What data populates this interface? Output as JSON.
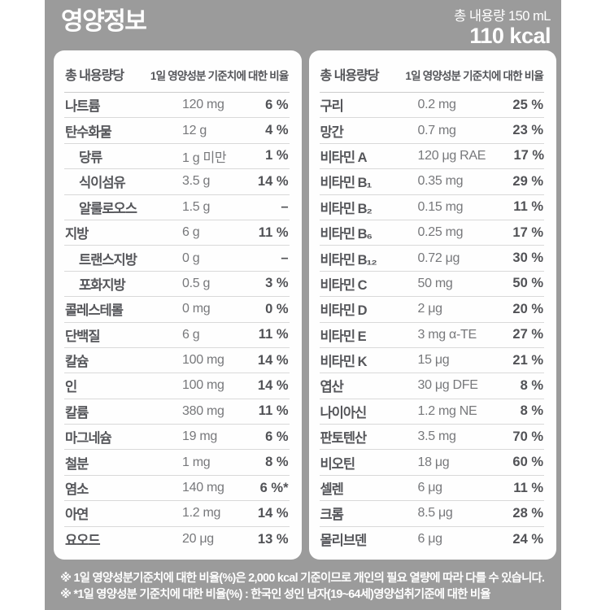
{
  "header": {
    "title": "영양정보",
    "total_volume": "총 내용량 150 mL",
    "calories": "110 kcal"
  },
  "left_table": {
    "col1_header": "총 내용량당",
    "col2_header": "1일 영양성분 기준치에 대한 비율",
    "rows": [
      {
        "name": "나트륨",
        "amount": "120 mg",
        "percent": "6 %",
        "indent": false
      },
      {
        "name": "탄수화물",
        "amount": "12 g",
        "percent": "4 %",
        "indent": false
      },
      {
        "name": "당류",
        "amount": "1 g 미만",
        "percent": "1 %",
        "indent": true
      },
      {
        "name": "식이섬유",
        "amount": "3.5 g",
        "percent": "14 %",
        "indent": true
      },
      {
        "name": "알룰로오스",
        "amount": "1.5 g",
        "percent": "–",
        "indent": true
      },
      {
        "name": "지방",
        "amount": "6 g",
        "percent": "11 %",
        "indent": false
      },
      {
        "name": "트랜스지방",
        "amount": "0 g",
        "percent": "–",
        "indent": true
      },
      {
        "name": "포화지방",
        "amount": "0.5 g",
        "percent": "3 %",
        "indent": true
      },
      {
        "name": "콜레스테롤",
        "amount": "0 mg",
        "percent": "0 %",
        "indent": false
      },
      {
        "name": "단백질",
        "amount": "6 g",
        "percent": "11 %",
        "indent": false
      },
      {
        "name": "칼슘",
        "amount": "100 mg",
        "percent": "14 %",
        "indent": false
      },
      {
        "name": "인",
        "amount": "100 mg",
        "percent": "14 %",
        "indent": false
      },
      {
        "name": "칼륨",
        "amount": "380 mg",
        "percent": "11 %",
        "indent": false
      },
      {
        "name": "마그네슘",
        "amount": "19 mg",
        "percent": "6 %",
        "indent": false
      },
      {
        "name": "철분",
        "amount": "1 mg",
        "percent": "8 %",
        "indent": false
      },
      {
        "name": "염소",
        "amount": "140 mg",
        "percent": "6 %*",
        "indent": false
      },
      {
        "name": "아연",
        "amount": "1.2 mg",
        "percent": "14 %",
        "indent": false
      },
      {
        "name": "요오드",
        "amount": "20 μg",
        "percent": "13 %",
        "indent": false
      }
    ]
  },
  "right_table": {
    "col1_header": "총 내용량당",
    "col2_header": "1일 영양성분 기준치에 대한 비율",
    "rows": [
      {
        "name": "구리",
        "amount": "0.2 mg",
        "percent": "25 %",
        "indent": false
      },
      {
        "name": "망간",
        "amount": "0.7 mg",
        "percent": "23 %",
        "indent": false
      },
      {
        "name": "비타민 A",
        "amount": "120 μg RAE",
        "percent": "17 %",
        "indent": false
      },
      {
        "name": "비타민 B₁",
        "amount": "0.35 mg",
        "percent": "29 %",
        "indent": false
      },
      {
        "name": "비타민 B₂",
        "amount": "0.15 mg",
        "percent": "11 %",
        "indent": false
      },
      {
        "name": "비타민 B₆",
        "amount": "0.25 mg",
        "percent": "17 %",
        "indent": false
      },
      {
        "name": "비타민 B₁₂",
        "amount": "0.72 μg",
        "percent": "30 %",
        "indent": false
      },
      {
        "name": "비타민 C",
        "amount": "50 mg",
        "percent": "50 %",
        "indent": false
      },
      {
        "name": "비타민 D",
        "amount": "2 μg",
        "percent": "20 %",
        "indent": false
      },
      {
        "name": "비타민 E",
        "amount": "3 mg α-TE",
        "percent": "27 %",
        "indent": false
      },
      {
        "name": "비타민 K",
        "amount": "15 μg",
        "percent": "21 %",
        "indent": false
      },
      {
        "name": "엽산",
        "amount": "30 μg DFE",
        "percent": "8 %",
        "indent": false
      },
      {
        "name": "나이아신",
        "amount": "1.2 mg NE",
        "percent": "8 %",
        "indent": false
      },
      {
        "name": "판토텐산",
        "amount": "3.5 mg",
        "percent": "70 %",
        "indent": false
      },
      {
        "name": "비오틴",
        "amount": "18 μg",
        "percent": "60 %",
        "indent": false
      },
      {
        "name": "셀렌",
        "amount": "6 μg",
        "percent": "11 %",
        "indent": false
      },
      {
        "name": "크롬",
        "amount": "8.5 μg",
        "percent": "28 %",
        "indent": false
      },
      {
        "name": "몰리브덴",
        "amount": "6 μg",
        "percent": "24 %",
        "indent": false
      }
    ]
  },
  "footnotes": [
    "※ 1일 영양성분기준치에 대한 비율(%)은 2,000 kcal 기준이므로 개인의 필요 열량에 따라 다를 수 있습니다.",
    "※ *1일 영양성분 기준치에 대한 비율(%) : 한국인 성인 남자(19~64세)영양섭취기준에 대한 비율"
  ],
  "colors": {
    "background": "#9b9b9b",
    "panel": "#fefefe",
    "name_text": "#55565a",
    "amount_text": "#77787b",
    "percent_text": "#515256",
    "divider": "#d9d9d9",
    "header_text": "#ffffff"
  }
}
